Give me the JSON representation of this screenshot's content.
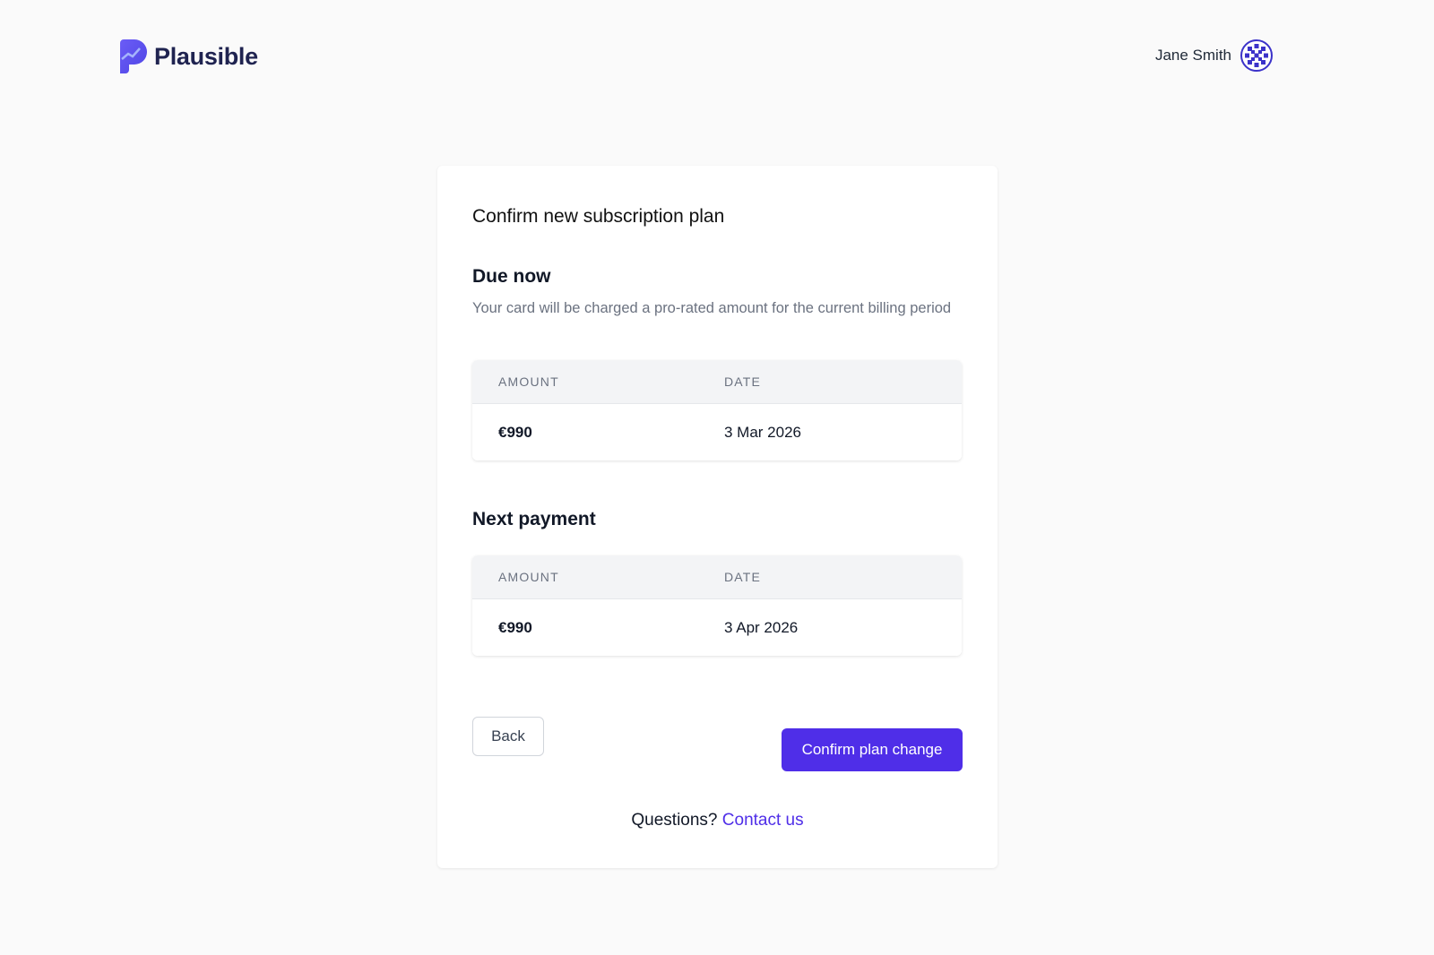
{
  "header": {
    "brand": "Plausible",
    "user_name": "Jane Smith"
  },
  "card": {
    "title": "Confirm new subscription plan",
    "due_now": {
      "heading": "Due now",
      "description": "Your card will be charged a pro-rated amount for the current billing period",
      "columns": [
        "AMOUNT",
        "DATE"
      ],
      "row": {
        "amount": "€990",
        "date": "3 Mar 2026"
      }
    },
    "next_payment": {
      "heading": "Next payment",
      "columns": [
        "AMOUNT",
        "DATE"
      ],
      "row": {
        "amount": "€990",
        "date": "3 Apr 2026"
      }
    },
    "back_label": "Back",
    "confirm_label": "Confirm plan change",
    "questions": "Questions?",
    "contact_label": "Contact us"
  },
  "colors": {
    "accent": "#4f2ee8",
    "brand": "#1f2350"
  }
}
